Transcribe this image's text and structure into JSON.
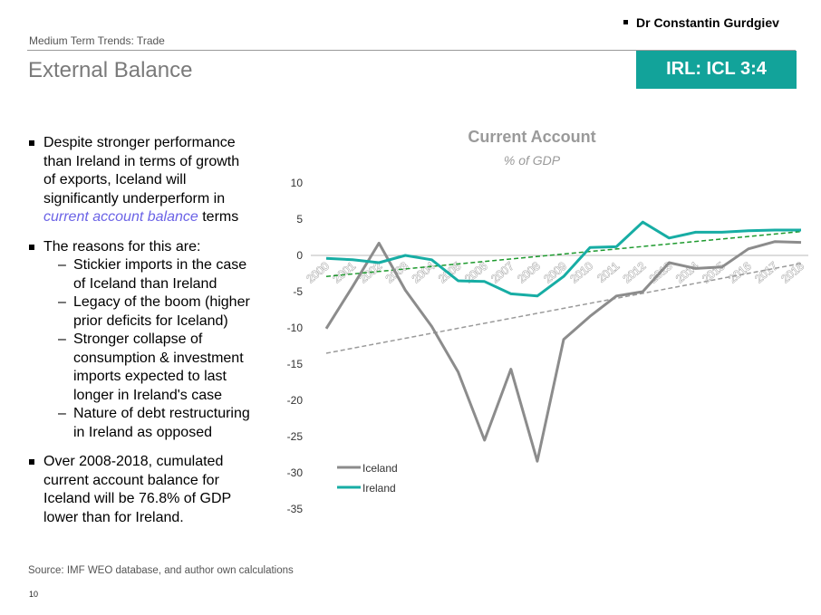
{
  "header": {
    "author": "Dr Constantin Gurdgiev",
    "section": "Medium Term Trends: Trade",
    "title": "External Balance",
    "badge": "IRL: ICL 3:4"
  },
  "bullets": {
    "b1": {
      "l1": "Despite stronger performance",
      "l2": "than Ireland in terms of growth",
      "l3": "of exports, Iceland will",
      "l4": "significantly underperform in",
      "highlight": "current account balance",
      "tail": " terms"
    },
    "b2": {
      "head": "The reasons for this are:",
      "items": [
        [
          "Stickier imports in the case",
          "of Iceland than Ireland"
        ],
        [
          "Legacy of the boom (higher",
          "prior deficits for Iceland)"
        ],
        [
          "Stronger collapse of",
          "consumption & investment",
          "imports expected to last",
          "longer in Ireland's case"
        ],
        [
          "Nature of debt restructuring",
          "in Ireland as opposed"
        ]
      ]
    },
    "b3": {
      "l1": "Over 2008-2018, cumulated",
      "l2": "current account balance for",
      "l3": "Iceland will be 76.8% of GDP",
      "l4": "lower than for Ireland."
    }
  },
  "footer": {
    "source": "Source: IMF WEO database, and author own calculations",
    "page": "10"
  },
  "chart_data": {
    "type": "line",
    "title": "Current Account",
    "subtitle": "% of GDP",
    "xlabel": "",
    "ylabel": "",
    "categories": [
      "2000",
      "2001",
      "2002",
      "2003",
      "2004",
      "2005",
      "2006",
      "2007",
      "2008",
      "2009",
      "2010",
      "2011",
      "2012",
      "2013",
      "2014",
      "2015",
      "2016",
      "2017",
      "2018"
    ],
    "ylim": [
      -35,
      10
    ],
    "yticks": [
      10,
      5,
      0,
      -5,
      -10,
      -15,
      -20,
      -25,
      -30,
      -35
    ],
    "grid": false,
    "legend_position": "bottom-left",
    "series": [
      {
        "name": "Iceland",
        "color": "#8c8c8c",
        "values": [
          -10.1,
          -4.3,
          1.7,
          -4.8,
          -9.8,
          -16.1,
          -25.5,
          -15.7,
          -28.4,
          -11.6,
          -8.4,
          -5.6,
          -5.0,
          -1.0,
          -1.8,
          -1.6,
          0.9,
          1.9,
          1.8
        ]
      },
      {
        "name": "Ireland",
        "color": "#17ada4",
        "values": [
          -0.4,
          -0.6,
          -1.0,
          0.0,
          -0.6,
          -3.5,
          -3.6,
          -5.3,
          -5.6,
          -2.9,
          1.1,
          1.2,
          4.6,
          2.4,
          3.2,
          3.2,
          3.4,
          3.5,
          3.5
        ]
      }
    ],
    "trendlines": [
      {
        "series": "Iceland",
        "color": "#9a9a9a",
        "style": "dashed",
        "start": -13.5,
        "end": -1.1
      },
      {
        "series": "Ireland",
        "color": "#1e9a2e",
        "style": "dashed",
        "start": -2.9,
        "end": 3.3
      }
    ]
  }
}
